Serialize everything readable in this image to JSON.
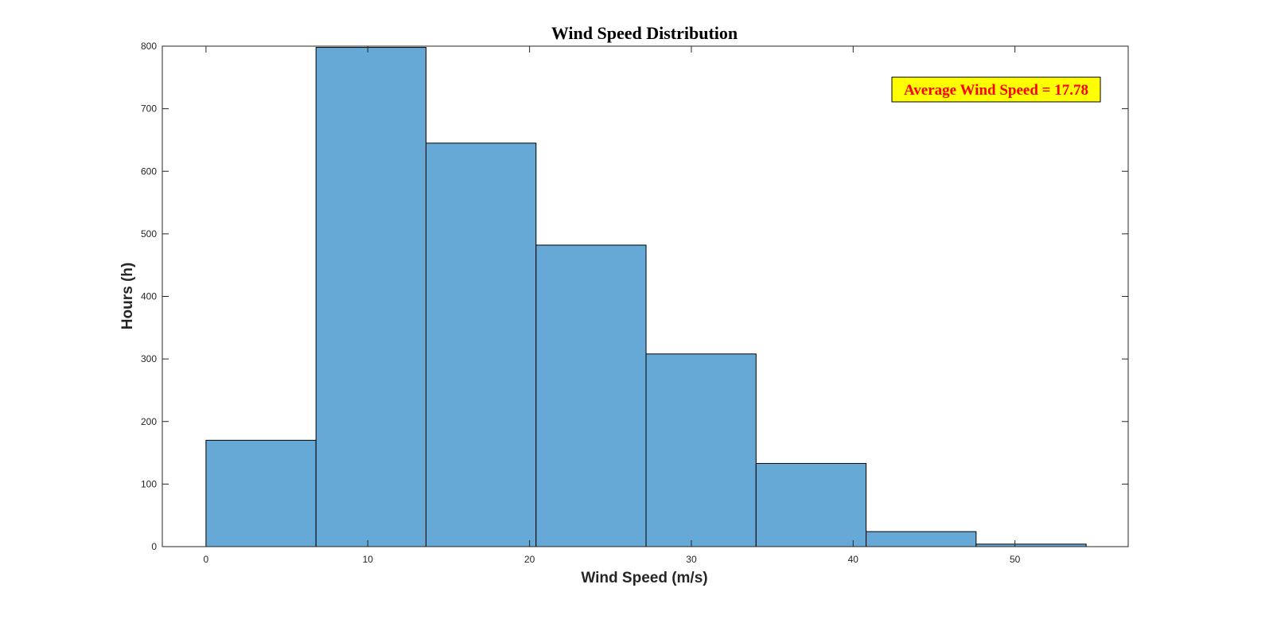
{
  "chart_data": {
    "type": "bar",
    "title": "Wind Speed Distribution",
    "xlabel": "Wind Speed (m/s)",
    "ylabel": "Hours (h)",
    "xlim": [
      -2.7,
      57
    ],
    "ylim": [
      0,
      800
    ],
    "xticks": [
      0,
      10,
      20,
      30,
      40,
      50
    ],
    "yticks": [
      0,
      100,
      200,
      300,
      400,
      500,
      600,
      700,
      800
    ],
    "bin_edges": [
      0,
      6.8,
      13.6,
      20.4,
      27.2,
      34.0,
      40.8,
      47.6,
      54.4
    ],
    "values": [
      170,
      798,
      645,
      482,
      308,
      133,
      24,
      4
    ],
    "grid": false,
    "colors": {
      "bar_fill": "#66a9d6",
      "bar_edge": "#000000",
      "axis": "#262626"
    },
    "annotation": {
      "text": "Average Wind Speed = 17.78",
      "text_color": "#ff0000",
      "background": "#ffff00",
      "border": "#000000",
      "placement": "top-right"
    }
  }
}
